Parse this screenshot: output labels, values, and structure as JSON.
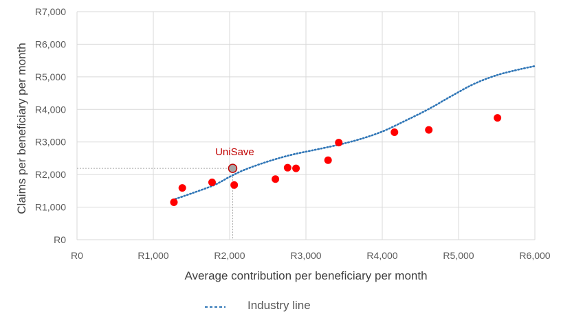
{
  "chart_data": {
    "type": "scatter",
    "title": "",
    "xlabel": "Average contribution per beneficiary per month",
    "ylabel": "Claims per beneficiary per month",
    "xlim": [
      0,
      6000
    ],
    "ylim": [
      0,
      7000
    ],
    "x_ticks": [
      0,
      1000,
      2000,
      3000,
      4000,
      5000,
      6000
    ],
    "x_tick_labels": [
      "R0",
      "R1,000",
      "R2,000",
      "R3,000",
      "R4,000",
      "R5,000",
      "R6,000"
    ],
    "y_ticks": [
      0,
      1000,
      2000,
      3000,
      4000,
      5000,
      6000,
      7000
    ],
    "y_tick_labels": [
      "R0",
      "R1,000",
      "R2,000",
      "R3,000",
      "R4,000",
      "R5,000",
      "R6,000",
      "R7,000"
    ],
    "grid": true,
    "legend_position": "bottom",
    "colors": {
      "points": "#ff0000",
      "highlight_point": "#a6a6a6",
      "highlight_label": "#c00000",
      "industry_line": "#2e75b6",
      "grid": "#d9d9d9"
    },
    "series": [
      {
        "type": "scatter",
        "points": [
          {
            "x": 1270,
            "y": 1150
          },
          {
            "x": 1380,
            "y": 1590
          },
          {
            "x": 1770,
            "y": 1760
          },
          {
            "x": 2060,
            "y": 1680
          },
          {
            "x": 2600,
            "y": 1860
          },
          {
            "x": 2760,
            "y": 2210
          },
          {
            "x": 2870,
            "y": 2190
          },
          {
            "x": 3290,
            "y": 2440
          },
          {
            "x": 3430,
            "y": 2980
          },
          {
            "x": 4160,
            "y": 3300
          },
          {
            "x": 4610,
            "y": 3370
          },
          {
            "x": 5510,
            "y": 3740
          }
        ]
      },
      {
        "type": "line",
        "name": "Industry line",
        "style": "dotted",
        "points": [
          {
            "x": 1250,
            "y": 1220
          },
          {
            "x": 1500,
            "y": 1420
          },
          {
            "x": 1800,
            "y": 1680
          },
          {
            "x": 2000,
            "y": 1930
          },
          {
            "x": 2200,
            "y": 2150
          },
          {
            "x": 2500,
            "y": 2400
          },
          {
            "x": 2800,
            "y": 2600
          },
          {
            "x": 3100,
            "y": 2750
          },
          {
            "x": 3400,
            "y": 2900
          },
          {
            "x": 3700,
            "y": 3080
          },
          {
            "x": 4000,
            "y": 3320
          },
          {
            "x": 4300,
            "y": 3650
          },
          {
            "x": 4600,
            "y": 4000
          },
          {
            "x": 4900,
            "y": 4400
          },
          {
            "x": 5200,
            "y": 4780
          },
          {
            "x": 5500,
            "y": 5050
          },
          {
            "x": 5800,
            "y": 5230
          },
          {
            "x": 6000,
            "y": 5330
          }
        ]
      }
    ],
    "highlight": {
      "label": "UniSave",
      "x": 2040,
      "y": 2190
    },
    "legend": [
      {
        "label": "Industry line",
        "style": "dashed",
        "color": "#2e75b6"
      }
    ]
  }
}
